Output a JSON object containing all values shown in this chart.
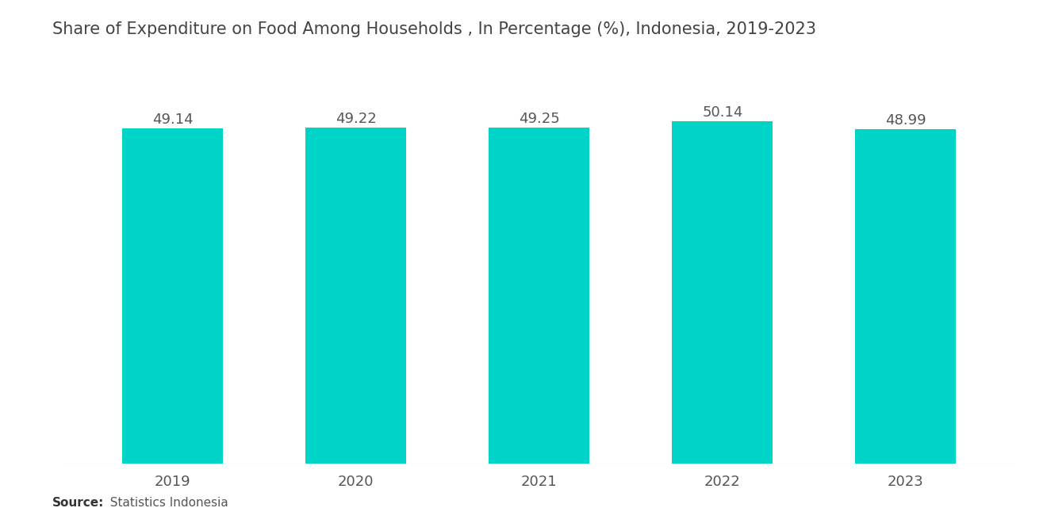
{
  "title": "Share of Expenditure on Food Among Households , In Percentage (%), Indonesia, 2019-2023",
  "categories": [
    "2019",
    "2020",
    "2021",
    "2022",
    "2023"
  ],
  "values": [
    49.14,
    49.22,
    49.25,
    50.14,
    48.99
  ],
  "bar_color": "#00D4C8",
  "background_color": "#ffffff",
  "title_fontsize": 15,
  "value_fontsize": 13,
  "tick_fontsize": 13,
  "source_bold": "Source:",
  "source_rest": "  Statistics Indonesia",
  "source_fontsize": 11,
  "ylim_min": 0,
  "ylim_max": 52.5,
  "bar_width": 0.55,
  "title_color": "#444444",
  "tick_color": "#555555",
  "value_color": "#555555",
  "source_color": "#555555",
  "source_bold_color": "#333333"
}
